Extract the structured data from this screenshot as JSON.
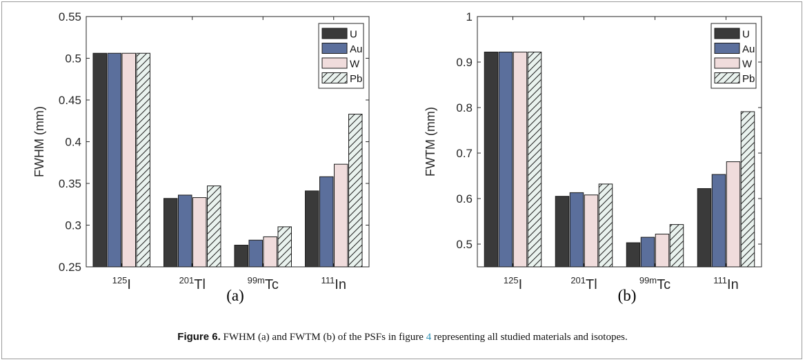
{
  "figure": {
    "caption_prefix": "Figure 6.",
    "caption_before_ref": " FWHM (a) and FWTM (b) of the PSFs in figure ",
    "caption_ref": "4",
    "caption_after_ref": " representing all studied materials and isotopes."
  },
  "colors": {
    "U": "#3a3a3a",
    "Au": "#5b6f9c",
    "W": "#f0dcdc",
    "Pb": "#e9f2ee"
  },
  "chart_data": [
    {
      "type": "bar",
      "panel_label": "(a)",
      "ylabel": "FWHM (mm)",
      "xlabel": "",
      "ylim": [
        0.25,
        0.55
      ],
      "yticks": [
        0.25,
        0.3,
        0.35,
        0.4,
        0.45,
        0.5,
        0.55
      ],
      "ytick_labels": [
        "0.25",
        "0.3",
        "0.35",
        "0.4",
        "0.45",
        "0.5",
        "0.55"
      ],
      "categories": [
        {
          "sup": "125",
          "base": "I"
        },
        {
          "sup": "201",
          "base": "Tl"
        },
        {
          "sup": "99m",
          "base": "Tc"
        },
        {
          "sup": "111",
          "base": "In"
        }
      ],
      "series": [
        {
          "name": "U",
          "values": [
            0.506,
            0.332,
            0.276,
            0.341
          ]
        },
        {
          "name": "Au",
          "values": [
            0.506,
            0.336,
            0.282,
            0.358
          ]
        },
        {
          "name": "W",
          "values": [
            0.506,
            0.333,
            0.286,
            0.373
          ]
        },
        {
          "name": "Pb",
          "values": [
            0.506,
            0.347,
            0.298,
            0.433
          ]
        }
      ],
      "legend_position": "top-right"
    },
    {
      "type": "bar",
      "panel_label": "(b)",
      "ylabel": "FWTM (mm)",
      "xlabel": "",
      "ylim": [
        0.45,
        1.0
      ],
      "yticks": [
        0.5,
        0.6,
        0.7,
        0.8,
        0.9,
        1.0
      ],
      "ytick_labels": [
        "0.5",
        "0.6",
        "0.7",
        "0.8",
        "0.9",
        "1"
      ],
      "categories": [
        {
          "sup": "125",
          "base": "I"
        },
        {
          "sup": "201",
          "base": "Tl"
        },
        {
          "sup": "99m",
          "base": "Tc"
        },
        {
          "sup": "111",
          "base": "In"
        }
      ],
      "series": [
        {
          "name": "U",
          "values": [
            0.922,
            0.605,
            0.503,
            0.622
          ]
        },
        {
          "name": "Au",
          "values": [
            0.922,
            0.613,
            0.515,
            0.653
          ]
        },
        {
          "name": "W",
          "values": [
            0.922,
            0.608,
            0.522,
            0.681
          ]
        },
        {
          "name": "Pb",
          "values": [
            0.922,
            0.632,
            0.543,
            0.791
          ]
        }
      ],
      "legend_position": "top-right"
    }
  ]
}
